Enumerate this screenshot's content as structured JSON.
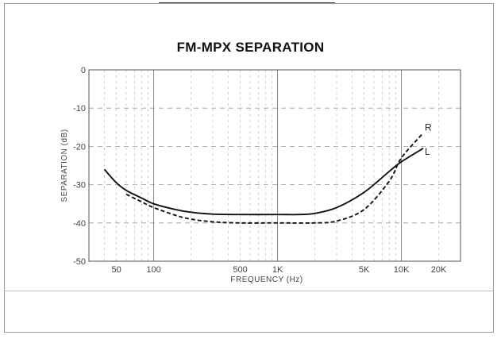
{
  "chart_data": {
    "type": "line",
    "title": "FM-MPX SEPARATION",
    "xlabel": "FREQUENCY (Hz)",
    "ylabel": "SEPARATION (dB)",
    "xscale": "log",
    "xlim": [
      30,
      30000
    ],
    "ylim": [
      -50,
      0
    ],
    "x_ticks": [
      {
        "value": 50,
        "label": "50"
      },
      {
        "value": 100,
        "label": "100"
      },
      {
        "value": 500,
        "label": "500"
      },
      {
        "value": 1000,
        "label": "1K"
      },
      {
        "value": 5000,
        "label": "5K"
      },
      {
        "value": 10000,
        "label": "10K"
      },
      {
        "value": 20000,
        "label": "20K"
      }
    ],
    "y_ticks": [
      {
        "value": 0,
        "label": "0"
      },
      {
        "value": -10,
        "label": "-10"
      },
      {
        "value": -20,
        "label": "-20"
      },
      {
        "value": -30,
        "label": "-30"
      },
      {
        "value": -40,
        "label": "-40"
      },
      {
        "value": -50,
        "label": "-50"
      }
    ],
    "grid": true,
    "series": [
      {
        "name": "L",
        "style": "solid",
        "x": [
          40,
          50,
          60,
          80,
          100,
          150,
          200,
          300,
          500,
          1000,
          1500,
          2000,
          3000,
          5000,
          8000,
          10000,
          15000
        ],
        "y": [
          -26,
          -29.5,
          -31.5,
          -33.5,
          -35,
          -36.5,
          -37.2,
          -37.7,
          -37.8,
          -37.8,
          -37.8,
          -37.5,
          -36,
          -32,
          -26.5,
          -24,
          -20.5
        ]
      },
      {
        "name": "R",
        "style": "dashed",
        "x": [
          60,
          80,
          100,
          150,
          200,
          300,
          500,
          1000,
          2000,
          3000,
          5000,
          8000,
          10000,
          15000
        ],
        "y": [
          -32.5,
          -34.5,
          -36,
          -38,
          -39,
          -39.7,
          -40,
          -40,
          -40,
          -39.5,
          -36.5,
          -29,
          -23,
          -16.5
        ]
      }
    ]
  }
}
